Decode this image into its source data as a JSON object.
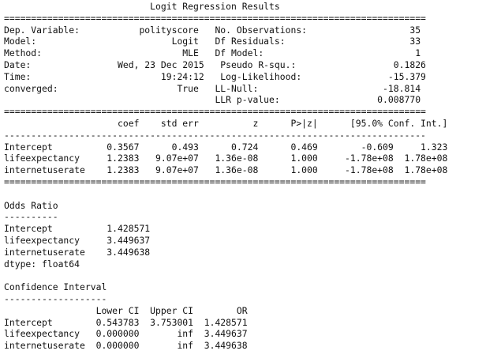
{
  "output": {
    "logit_title": "                           Logit Regression Results                           ",
    "rule_double_1": "==============================================================================",
    "meta_row_1": "Dep. Variable:           polityscore   No. Observations:                   35",
    "meta_row_2": "Model:                         Logit   Df Residuals:                       33",
    "meta_row_3": "Method:                          MLE   Df Model:                            1",
    "meta_row_4": "Date:                Wed, 23 Dec 2015   Pseudo R-squ.:                  0.1826",
    "meta_row_5": "Time:                        19:24:12   Log-Likelihood:                -15.379",
    "meta_row_6": "converged:                      True   LL-Null:                       -18.814",
    "meta_row_7": "                                       LLR p-value:                  0.008770",
    "rule_double_2": "==============================================================================",
    "coef_header": "                     coef    std err          z      P>|z|      [95.0% Conf. Int.]",
    "rule_single_1": "------------------------------------------------------------------------------",
    "coef_row_1": "Intercept          0.3567      0.493      0.724      0.469        -0.609     1.323",
    "coef_row_2": "lifeexpectancy     1.2383   9.07e+07   1.36e-08      1.000     -1.78e+08  1.78e+08",
    "coef_row_3": "internetuserate    1.2383   9.07e+07   1.36e-08      1.000     -1.78e+08  1.78e+08",
    "rule_double_3": "==============================================================================",
    "blank_1": "",
    "odds_title": "Odds Ratio",
    "odds_rule": "----------",
    "odds_row_1": "Intercept          1.428571",
    "odds_row_2": "lifeexpectancy     3.449637",
    "odds_row_3": "internetuserate    3.449638",
    "odds_dtype": "dtype: float64",
    "blank_2": "",
    "ci_title": "Confidence Interval",
    "ci_rule": "-------------------",
    "ci_header": "                 Lower CI  Upper CI        OR",
    "ci_row_1": "Intercept        0.543783  3.753001  1.428571",
    "ci_row_2": "lifeexpectancy   0.000000       inf  3.449637",
    "ci_row_3": "internetuserate  0.000000       inf  3.449638"
  }
}
